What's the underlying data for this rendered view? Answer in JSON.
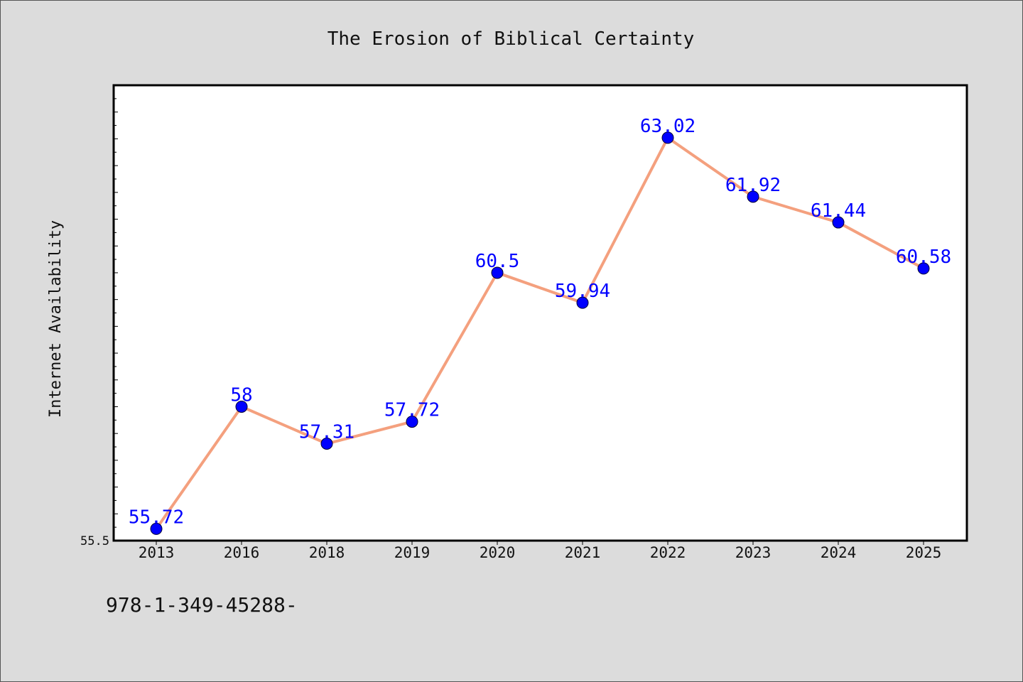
{
  "footer": {
    "text": "978-1-349-45288-"
  },
  "chart_data": {
    "type": "line",
    "title": "The Erosion of Biblical Certainty",
    "xlabel": "",
    "ylabel": "Internet Availability",
    "categories": [
      "2013",
      "2016",
      "2018",
      "2019",
      "2020",
      "2021",
      "2022",
      "2023",
      "2024",
      "2025"
    ],
    "series": [
      {
        "values": [
          55.72,
          58,
          57.31,
          57.72,
          60.5,
          59.94,
          63.02,
          61.92,
          61.44,
          60.58
        ],
        "labels": [
          "55.72",
          "58",
          "57.31",
          "57.72",
          "60.5",
          "59.94",
          "63.02",
          "61.92",
          "61.44",
          "60.58"
        ]
      }
    ],
    "ylim": [
      55.5,
      64.0
    ],
    "y_tick_labels": [
      "55.5"
    ],
    "grid": false,
    "legend": "none",
    "colors": {
      "line": "#f4a07e",
      "marker": "#0000ff",
      "label": "#0000ff",
      "background": "#dcdcdc",
      "plot_area": "#ffffff"
    }
  }
}
